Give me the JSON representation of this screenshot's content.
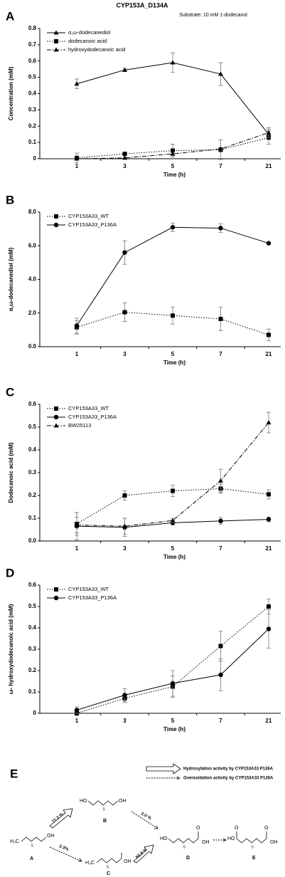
{
  "chart_data": [
    {
      "type": "line",
      "panel_label": "A",
      "title": "CYP153A_D134A",
      "subtitle": "Substrate: 10 mM 1-dodecanol",
      "x_label": "Time (h)",
      "y_label": "Concentration (mM)",
      "categories": [
        "1",
        "3",
        "5",
        "7",
        "21"
      ],
      "ylim": [
        0,
        0.8
      ],
      "yticks": [
        0,
        0.1,
        0.2,
        0.3,
        0.4,
        0.5,
        0.6,
        0.7,
        0.8
      ],
      "series": [
        {
          "name": "α,ω-dodecanediol",
          "color": "#000000",
          "line_style": "solid",
          "marker": "triangle",
          "values": [
            0.46,
            0.545,
            0.59,
            0.52,
            0.15
          ],
          "errors": [
            0.03,
            0.01,
            0.06,
            0.07,
            0.03
          ]
        },
        {
          "name": "dodecanoic acid",
          "color": "#000000",
          "line_style": "dotted",
          "marker": "square",
          "values": [
            0.005,
            0.03,
            0.05,
            0.055,
            0.13
          ],
          "errors": [
            0.03,
            0.01,
            0.04,
            0.06,
            0.04
          ]
        },
        {
          "name": "hydroxydodecanoic acid",
          "color": "#000000",
          "line_style": "dashdot",
          "marker": "triangle",
          "values": [
            0.0,
            0.005,
            0.03,
            0.06,
            0.16
          ],
          "errors": [
            0.005,
            0.005,
            0.01,
            0.01,
            0.03
          ]
        }
      ]
    },
    {
      "type": "line",
      "panel_label": "B",
      "x_label": "Time (h)",
      "y_label": "α,ω-dodecanediol  (mM)",
      "categories": [
        "1",
        "3",
        "5",
        "7",
        "21"
      ],
      "ylim": [
        0,
        8
      ],
      "yticks": [
        {
          "value": 0,
          "label": "0.0"
        },
        {
          "value": 2,
          "label": "2.0"
        },
        {
          "value": 4,
          "label": "4.0"
        },
        {
          "value": 6,
          "label": "6.0"
        },
        {
          "value": 8,
          "label": "8.0"
        }
      ],
      "series": [
        {
          "name": "CYP153A33_WT",
          "color": "#000000",
          "line_style": "dotted",
          "marker": "square",
          "values": [
            1.15,
            2.05,
            1.85,
            1.65,
            0.7
          ],
          "errors": [
            0.4,
            0.55,
            0.5,
            0.7,
            0.35
          ]
        },
        {
          "name": "CYP153A33_P136A",
          "color": "#000000",
          "line_style": "solid",
          "marker": "circle",
          "values": [
            1.25,
            5.6,
            7.1,
            7.05,
            6.15
          ],
          "errors": [
            0.45,
            0.7,
            0.25,
            0.25,
            0.05
          ]
        }
      ]
    },
    {
      "type": "line",
      "panel_label": "C",
      "x_label": "Time (h)",
      "y_label": "Dodecanoic acid (mM)",
      "categories": [
        "1",
        "3",
        "5",
        "7",
        "21"
      ],
      "ylim": [
        0,
        0.6
      ],
      "yticks": [
        {
          "value": 0,
          "label": "0.0"
        },
        0.1,
        0.2,
        0.3,
        0.4,
        0.5,
        0.6
      ],
      "series": [
        {
          "name": "CYP153A33_WT",
          "color": "#000000",
          "line_style": "dotted",
          "marker": "square",
          "values": [
            0.075,
            0.2,
            0.22,
            0.23,
            0.205
          ],
          "errors": [
            0.05,
            0.02,
            0.025,
            0.02,
            0.02
          ]
        },
        {
          "name": "CYP153A33_P136A",
          "color": "#000000",
          "line_style": "solid",
          "marker": "circle",
          "values": [
            0.065,
            0.06,
            0.08,
            0.088,
            0.095
          ],
          "errors": [
            0.06,
            0.04,
            0.01,
            0.015,
            0.01
          ]
        },
        {
          "name": "BW25113",
          "color": "#000000",
          "line_style": "dashdot",
          "marker": "triangle",
          "values": [
            0.07,
            0.065,
            0.09,
            0.265,
            0.52
          ],
          "errors": [
            0.035,
            0.035,
            0.01,
            0.05,
            0.045
          ]
        }
      ]
    },
    {
      "type": "line",
      "panel_label": "D",
      "x_label": "Time (h)",
      "y_label": "ω- hydroxydodecanoic acid (mM)",
      "categories": [
        "1",
        "3",
        "5",
        "7",
        "21"
      ],
      "ylim": [
        0,
        0.6
      ],
      "yticks": [
        0,
        0.1,
        0.2,
        0.3,
        0.4,
        0.5,
        0.6
      ],
      "series": [
        {
          "name": "CYP153A33_WT",
          "color": "#000000",
          "line_style": "dotted",
          "marker": "square",
          "values": [
            0.0,
            0.07,
            0.125,
            0.315,
            0.5
          ],
          "errors": [
            0.01,
            0.02,
            0.05,
            0.07,
            0.035
          ]
        },
        {
          "name": "CYP153A33_P136A",
          "color": "#000000",
          "line_style": "solid",
          "marker": "circle",
          "values": [
            0.015,
            0.085,
            0.14,
            0.18,
            0.395
          ],
          "errors": [
            0.015,
            0.03,
            0.06,
            0.075,
            0.09
          ]
        }
      ]
    }
  ],
  "scheme": {
    "panel_label": "E",
    "legend": [
      "Hydroxylation activity by CYP153A33 P136A",
      "Overoxidation activity by CYP153A33 P136A"
    ],
    "yields": [
      "71.2 %",
      "2.3%",
      "2.0 %",
      "60.9 %"
    ],
    "subscript": "5",
    "compounds": [
      {
        "label": "A",
        "groups": [
          "H₃C",
          "OH"
        ]
      },
      {
        "label": "B",
        "groups": [
          "HO",
          "OH"
        ]
      },
      {
        "label": "C",
        "groups": [
          "H₃C",
          "OH"
        ]
      },
      {
        "label": "D",
        "groups": [
          "HO",
          "O",
          "OH"
        ]
      },
      {
        "label": "E",
        "groups": [
          "HO",
          "O",
          "O",
          "OH"
        ]
      }
    ]
  }
}
